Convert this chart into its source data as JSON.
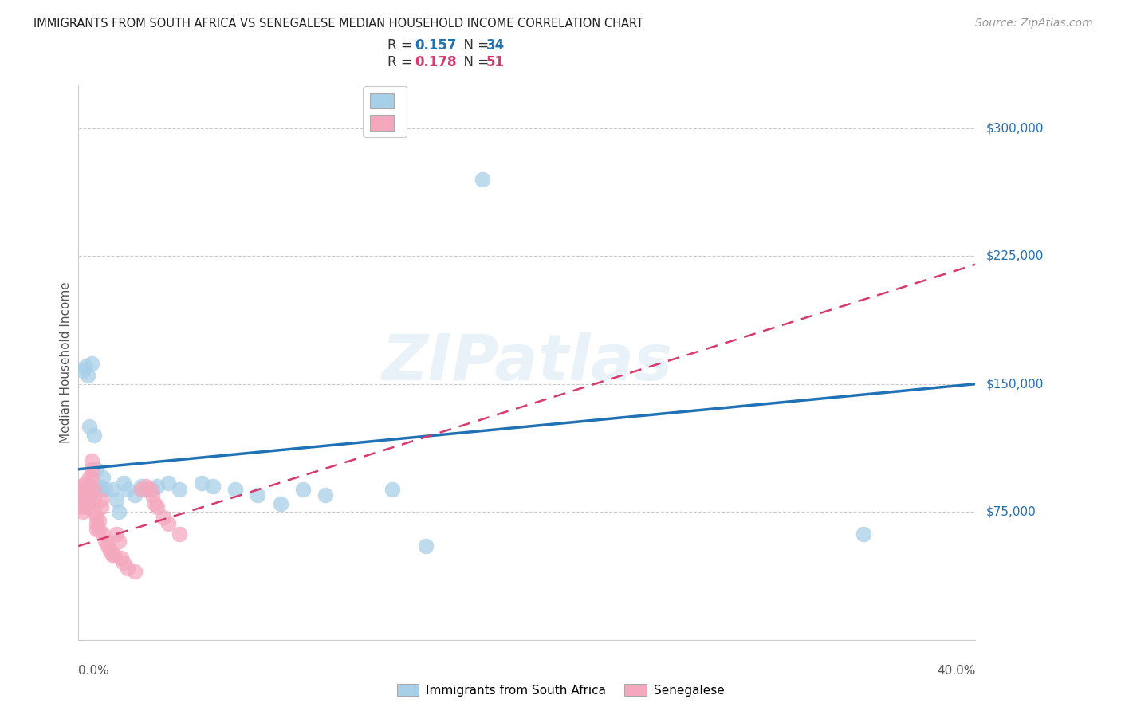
{
  "title": "IMMIGRANTS FROM SOUTH AFRICA VS SENEGALESE MEDIAN HOUSEHOLD INCOME CORRELATION CHART",
  "source": "Source: ZipAtlas.com",
  "ylabel": "Median Household Income",
  "y_tick_labels": [
    "$75,000",
    "$150,000",
    "$225,000",
    "$300,000"
  ],
  "y_tick_values": [
    75000,
    150000,
    225000,
    300000
  ],
  "xlim": [
    0.0,
    0.4
  ],
  "ylim": [
    0,
    325000
  ],
  "watermark": "ZIPatlas",
  "blue_color": "#a8cfe8",
  "pink_color": "#f4a8be",
  "blue_line_color": "#2171b5",
  "pink_line_color": "#d63a6e",
  "blue_r": "0.157",
  "blue_n": "34",
  "pink_r": "0.178",
  "pink_n": "51",
  "blue_scatter_x": [
    0.002,
    0.003,
    0.004,
    0.005,
    0.006,
    0.007,
    0.008,
    0.009,
    0.01,
    0.011,
    0.012,
    0.015,
    0.017,
    0.018,
    0.02,
    0.022,
    0.025,
    0.028,
    0.03,
    0.033,
    0.035,
    0.04,
    0.045,
    0.055,
    0.06,
    0.07,
    0.08,
    0.09,
    0.1,
    0.11,
    0.14,
    0.155,
    0.18,
    0.35
  ],
  "blue_scatter_y": [
    158000,
    160000,
    155000,
    125000,
    162000,
    120000,
    100000,
    90000,
    88000,
    95000,
    88000,
    88000,
    82000,
    75000,
    92000,
    88000,
    85000,
    90000,
    88000,
    88000,
    90000,
    92000,
    88000,
    92000,
    90000,
    88000,
    85000,
    80000,
    88000,
    85000,
    88000,
    55000,
    270000,
    62000
  ],
  "pink_scatter_x": [
    0.001,
    0.001,
    0.001,
    0.001,
    0.002,
    0.002,
    0.002,
    0.003,
    0.003,
    0.003,
    0.003,
    0.004,
    0.004,
    0.004,
    0.005,
    0.005,
    0.005,
    0.006,
    0.006,
    0.006,
    0.007,
    0.007,
    0.007,
    0.008,
    0.008,
    0.008,
    0.009,
    0.009,
    0.01,
    0.01,
    0.011,
    0.012,
    0.013,
    0.014,
    0.015,
    0.016,
    0.017,
    0.018,
    0.019,
    0.02,
    0.022,
    0.025,
    0.028,
    0.03,
    0.032,
    0.033,
    0.034,
    0.035,
    0.038,
    0.04,
    0.045
  ],
  "pink_scatter_y": [
    90000,
    88000,
    82000,
    78000,
    85000,
    80000,
    75000,
    92000,
    88000,
    85000,
    80000,
    88000,
    82000,
    78000,
    95000,
    90000,
    85000,
    105000,
    100000,
    95000,
    88000,
    82000,
    75000,
    72000,
    68000,
    65000,
    70000,
    65000,
    82000,
    78000,
    62000,
    58000,
    55000,
    52000,
    50000,
    50000,
    62000,
    58000,
    48000,
    45000,
    42000,
    40000,
    88000,
    90000,
    88000,
    85000,
    80000,
    78000,
    72000,
    68000,
    62000
  ]
}
